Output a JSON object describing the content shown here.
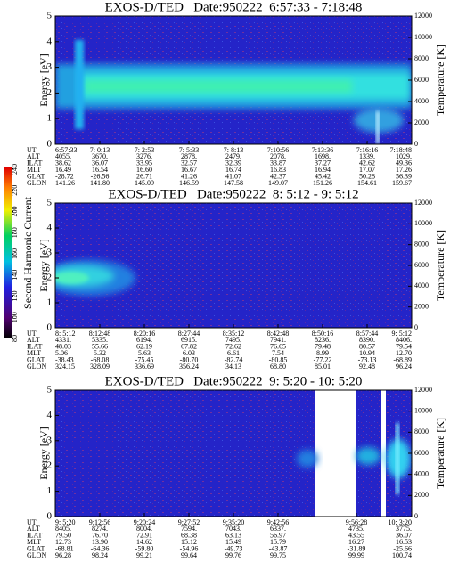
{
  "colorbar": {
    "label": "Second Harmonic Current",
    "ticks": [
      80,
      100,
      120,
      140,
      160,
      180,
      200,
      220,
      240
    ]
  },
  "panels": [
    {
      "title": "EXOS-D/TED   Date:950222  6:57:33 - 7:18:48",
      "ylabel": "Energy [eV]",
      "y2label": "Temperature [K]",
      "ylim": [
        0,
        5
      ],
      "yticks": [
        0,
        1,
        2,
        3,
        4,
        5
      ],
      "y2lim": [
        0,
        12000
      ],
      "y2ticks": [
        0,
        2000,
        4000,
        6000,
        8000,
        10000,
        12000
      ],
      "row_labels": [
        "UT",
        "ALT",
        "ILAT",
        "MLT",
        "GLAT",
        "GLON"
      ],
      "columns": [
        [
          "6:57:33",
          "4055.",
          "38.62",
          "16.49",
          "-28.72",
          "141.26"
        ],
        [
          "7: 0:13",
          "3670.",
          "36.07",
          "16.54",
          "-26.56",
          "141.80"
        ],
        [
          "7: 2:53",
          "3276.",
          "33.95",
          "16.60",
          "26.71",
          "145.09"
        ],
        [
          "7: 5:33",
          "2878.",
          "32.57",
          "16.67",
          "41.26",
          "146.59"
        ],
        [
          "7: 8:13",
          "2479.",
          "32.39",
          "16.74",
          "41.07",
          "147.58"
        ],
        [
          "7:10:56",
          "2078.",
          "33.87",
          "16.83",
          "42.37",
          "149.07"
        ],
        [
          "7:13:36",
          "1698.",
          "37.27",
          "16.94",
          "45.42",
          "151.26"
        ],
        [
          "7:16:16",
          "1339.",
          "42.62",
          "17.07",
          "50.28",
          "154.61"
        ],
        [
          "7:18:48",
          "1029.",
          "49.36",
          "17.26",
          "56.39",
          "159.67"
        ]
      ]
    },
    {
      "title": "EXOS-D/TED   Date:950222  8: 5:12 - 9: 5:12",
      "ylabel": "Energy [eV]",
      "y2label": "Temperature [K]",
      "ylim": [
        0,
        5
      ],
      "yticks": [
        0,
        1,
        2,
        3,
        4,
        5
      ],
      "y2lim": [
        0,
        12000
      ],
      "y2ticks": [
        0,
        2000,
        4000,
        6000,
        8000,
        10000,
        12000
      ],
      "row_labels": [
        "UT",
        "ALT",
        "ILAT",
        "MLT",
        "GLAT",
        "GLON"
      ],
      "columns": [
        [
          "8: 5:12",
          "4331.",
          "48.03",
          "5.06",
          "-38.43",
          "324.15"
        ],
        [
          "8:12:48",
          "5335.",
          "55.66",
          "5.32",
          "-68.08",
          "328.09"
        ],
        [
          "8:20:16",
          "6194.",
          "62.19",
          "5.63",
          "-75.45",
          "336.69"
        ],
        [
          "8:27:44",
          "6915.",
          "67.82",
          "6.03",
          "-80.70",
          "356.24"
        ],
        [
          "8:35:12",
          "7495.",
          "72.62",
          "6.61",
          "-82.74",
          "34.13"
        ],
        [
          "8:42:48",
          "7941.",
          "76.65",
          "7.54",
          "-80.85",
          "68.80"
        ],
        [
          "8:50:16",
          "8236.",
          "79.48",
          "8.99",
          "-77.22",
          "85.01"
        ],
        [
          "8:57:44",
          "8390.",
          "80.57",
          "10.94",
          "-73.13",
          "92.48"
        ],
        [
          "9: 5:12",
          "8406.",
          "79.54",
          "12.70",
          "-68.89",
          "96.24"
        ]
      ]
    },
    {
      "title": "EXOS-D/TED   Date:950222  9: 5:20 - 10: 5:20",
      "ylabel": "Energy [eV]",
      "y2label": "Temperature [K]",
      "ylim": [
        0,
        5
      ],
      "yticks": [
        0,
        1,
        2,
        3,
        4,
        5
      ],
      "y2lim": [
        0,
        12000
      ],
      "y2ticks": [
        0,
        2000,
        4000,
        6000,
        8000,
        10000,
        12000
      ],
      "row_labels": [
        "UT",
        "ALT",
        "ILAT",
        "MLT",
        "GLAT",
        "GLON"
      ],
      "columns": [
        [
          "9: 5:20",
          "8405.",
          "79.50",
          "12.73",
          "-68.81",
          "96.28"
        ],
        [
          "9:12:56",
          "8274.",
          "76.70",
          "13.90",
          "-64.36",
          "98.24"
        ],
        [
          "9:20:24",
          "8004.",
          "72.91",
          "14.62",
          "-59.80",
          "99.21"
        ],
        [
          "9:27:52",
          "7594.",
          "68.38",
          "15.12",
          "-54.96",
          "99.64"
        ],
        [
          "9:35:20",
          "7043.",
          "63.13",
          "15.49",
          "-49.73",
          "99.76"
        ],
        [
          "9:42:56",
          "6337.",
          "56.97",
          "15.79",
          "-43.87",
          "99.75"
        ],
        [
          "9:56:28",
          "4735.",
          "43.55",
          "16.27",
          "-31.89",
          "99.99"
        ],
        [
          "10: 3:20",
          "3775.",
          "36.07",
          "16.53",
          "-25.66",
          "100.74"
        ]
      ]
    }
  ]
}
